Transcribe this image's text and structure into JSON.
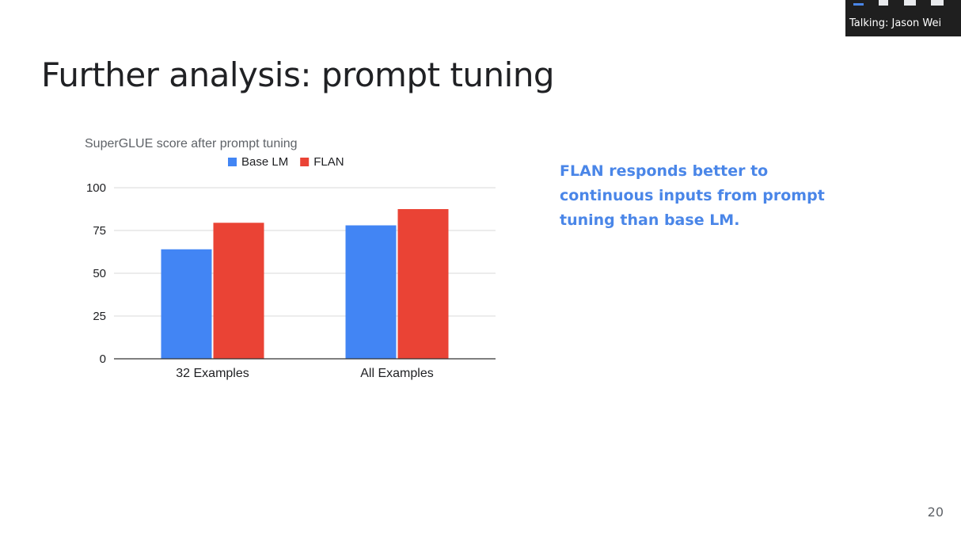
{
  "slide": {
    "title": "Further analysis: prompt tuning",
    "callout": "FLAN responds better to continuous inputs from prompt tuning than base LM.",
    "page_number": "20"
  },
  "speaker_panel": {
    "talking_label": "Talking: Jason Wei"
  },
  "colors": {
    "base_lm": "#4285f4",
    "flan": "#ea4335",
    "callout_text": "#4a86e8"
  },
  "chart_data": {
    "type": "bar",
    "title": "SuperGLUE score after prompt tuning",
    "categories": [
      "32 Examples",
      "All Examples"
    ],
    "series": [
      {
        "name": "Base LM",
        "values": [
          64,
          78
        ]
      },
      {
        "name": "FLAN",
        "values": [
          79.5,
          87.5
        ]
      }
    ],
    "xlabel": "",
    "ylabel": "",
    "ylim": [
      0,
      100
    ],
    "yticks": [
      0,
      25,
      50,
      75,
      100
    ],
    "ytick_labels": [
      "0",
      "25",
      "50",
      "75",
      "100"
    ],
    "grid": true,
    "legend": "top-center"
  }
}
